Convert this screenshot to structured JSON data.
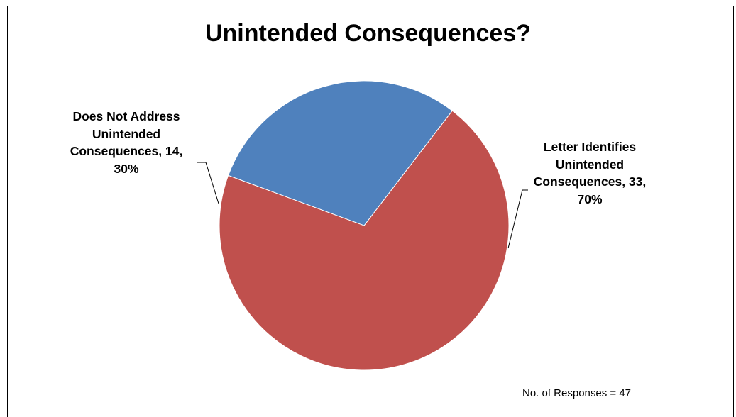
{
  "chart_data": {
    "type": "pie",
    "title": "Unintended Consequences?",
    "slices": [
      {
        "label": "Letter Identifies Unintended Consequences",
        "value": 33,
        "percent": 70,
        "color": "#C0504D",
        "label_lines": [
          "Letter Identifies",
          "Unintended",
          "Consequences, 33,",
          "70%"
        ]
      },
      {
        "label": "Does Not Address Unintended Consequences",
        "value": 14,
        "percent": 30,
        "color": "#4F81BD",
        "label_lines": [
          "Does Not Address",
          "Unintended",
          "Consequences, 14,",
          "30%"
        ]
      }
    ],
    "note": "No. of Responses = 47"
  }
}
